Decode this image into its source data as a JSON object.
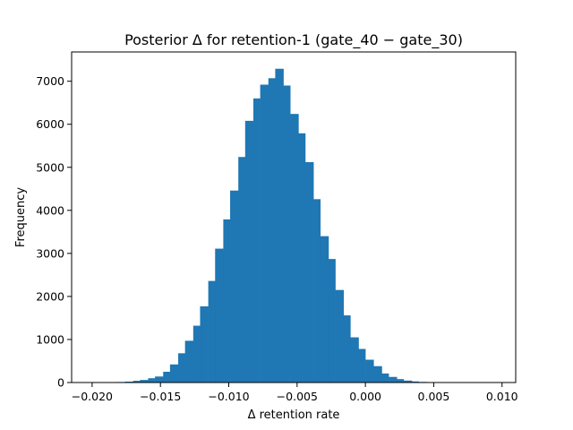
{
  "chart_data": {
    "type": "bar",
    "title": "Posterior Δ for retention-1 (gate_40 − gate_30)",
    "xlabel": "Δ retention rate",
    "ylabel": "Frequency",
    "xlim": [
      -0.0215,
      0.011
    ],
    "ylim": [
      0,
      7680
    ],
    "xticks": [
      -0.02,
      -0.015,
      -0.01,
      -0.005,
      0.0,
      0.005,
      0.01
    ],
    "xtick_labels": [
      "−0.020",
      "−0.015",
      "−0.010",
      "−0.005",
      "0.000",
      "0.005",
      "0.010"
    ],
    "yticks": [
      0,
      1000,
      2000,
      3000,
      4000,
      5000,
      6000,
      7000
    ],
    "ytick_labels": [
      "0",
      "1000",
      "2000",
      "3000",
      "4000",
      "5000",
      "6000",
      "7000"
    ],
    "bar_color": "#1f77b4",
    "bins": [
      {
        "x0": -0.0204,
        "x1": -0.0198,
        "count": 2
      },
      {
        "x0": -0.0198,
        "x1": -0.0193,
        "count": 3
      },
      {
        "x0": -0.0193,
        "x1": -0.0187,
        "count": 5
      },
      {
        "x0": -0.0187,
        "x1": -0.0182,
        "count": 8
      },
      {
        "x0": -0.0182,
        "x1": -0.0176,
        "count": 12
      },
      {
        "x0": -0.0176,
        "x1": -0.017,
        "count": 20
      },
      {
        "x0": -0.017,
        "x1": -0.0165,
        "count": 40
      },
      {
        "x0": -0.0165,
        "x1": -0.0159,
        "count": 60
      },
      {
        "x0": -0.0159,
        "x1": -0.0154,
        "count": 100
      },
      {
        "x0": -0.0154,
        "x1": -0.0148,
        "count": 140
      },
      {
        "x0": -0.0148,
        "x1": -0.0143,
        "count": 250
      },
      {
        "x0": -0.0143,
        "x1": -0.0137,
        "count": 420
      },
      {
        "x0": -0.0137,
        "x1": -0.0132,
        "count": 680
      },
      {
        "x0": -0.0132,
        "x1": -0.0126,
        "count": 970
      },
      {
        "x0": -0.0126,
        "x1": -0.0121,
        "count": 1320
      },
      {
        "x0": -0.0121,
        "x1": -0.0115,
        "count": 1770
      },
      {
        "x0": -0.0115,
        "x1": -0.011,
        "count": 2360
      },
      {
        "x0": -0.011,
        "x1": -0.0104,
        "count": 3110
      },
      {
        "x0": -0.0104,
        "x1": -0.0099,
        "count": 3790
      },
      {
        "x0": -0.0099,
        "x1": -0.0093,
        "count": 4460
      },
      {
        "x0": -0.0093,
        "x1": -0.0088,
        "count": 5240
      },
      {
        "x0": -0.0088,
        "x1": -0.0082,
        "count": 6080
      },
      {
        "x0": -0.0082,
        "x1": -0.0077,
        "count": 6600
      },
      {
        "x0": -0.0077,
        "x1": -0.0071,
        "count": 6920
      },
      {
        "x0": -0.0071,
        "x1": -0.0066,
        "count": 7070
      },
      {
        "x0": -0.0066,
        "x1": -0.006,
        "count": 7290
      },
      {
        "x0": -0.006,
        "x1": -0.0055,
        "count": 6900
      },
      {
        "x0": -0.0055,
        "x1": -0.0049,
        "count": 6240
      },
      {
        "x0": -0.0049,
        "x1": -0.0044,
        "count": 5790
      },
      {
        "x0": -0.0044,
        "x1": -0.0038,
        "count": 5120
      },
      {
        "x0": -0.0038,
        "x1": -0.0033,
        "count": 4260
      },
      {
        "x0": -0.0033,
        "x1": -0.0027,
        "count": 3400
      },
      {
        "x0": -0.0027,
        "x1": -0.0022,
        "count": 2870
      },
      {
        "x0": -0.0022,
        "x1": -0.0016,
        "count": 2150
      },
      {
        "x0": -0.0016,
        "x1": -0.0011,
        "count": 1560
      },
      {
        "x0": -0.0011,
        "x1": -0.0005,
        "count": 1050
      },
      {
        "x0": -0.0005,
        "x1": 0.0,
        "count": 780
      },
      {
        "x0": 0.0,
        "x1": 0.0006,
        "count": 530
      },
      {
        "x0": 0.0006,
        "x1": 0.0012,
        "count": 380
      },
      {
        "x0": 0.0012,
        "x1": 0.0017,
        "count": 210
      },
      {
        "x0": 0.0017,
        "x1": 0.0023,
        "count": 130
      },
      {
        "x0": 0.0023,
        "x1": 0.0028,
        "count": 80
      },
      {
        "x0": 0.0028,
        "x1": 0.0034,
        "count": 45
      },
      {
        "x0": 0.0034,
        "x1": 0.0039,
        "count": 25
      },
      {
        "x0": 0.0039,
        "x1": 0.0045,
        "count": 14
      },
      {
        "x0": 0.0045,
        "x1": 0.005,
        "count": 8
      },
      {
        "x0": 0.005,
        "x1": 0.0056,
        "count": 5
      },
      {
        "x0": 0.0056,
        "x1": 0.0061,
        "count": 3
      },
      {
        "x0": 0.0061,
        "x1": 0.0067,
        "count": 2
      }
    ]
  }
}
